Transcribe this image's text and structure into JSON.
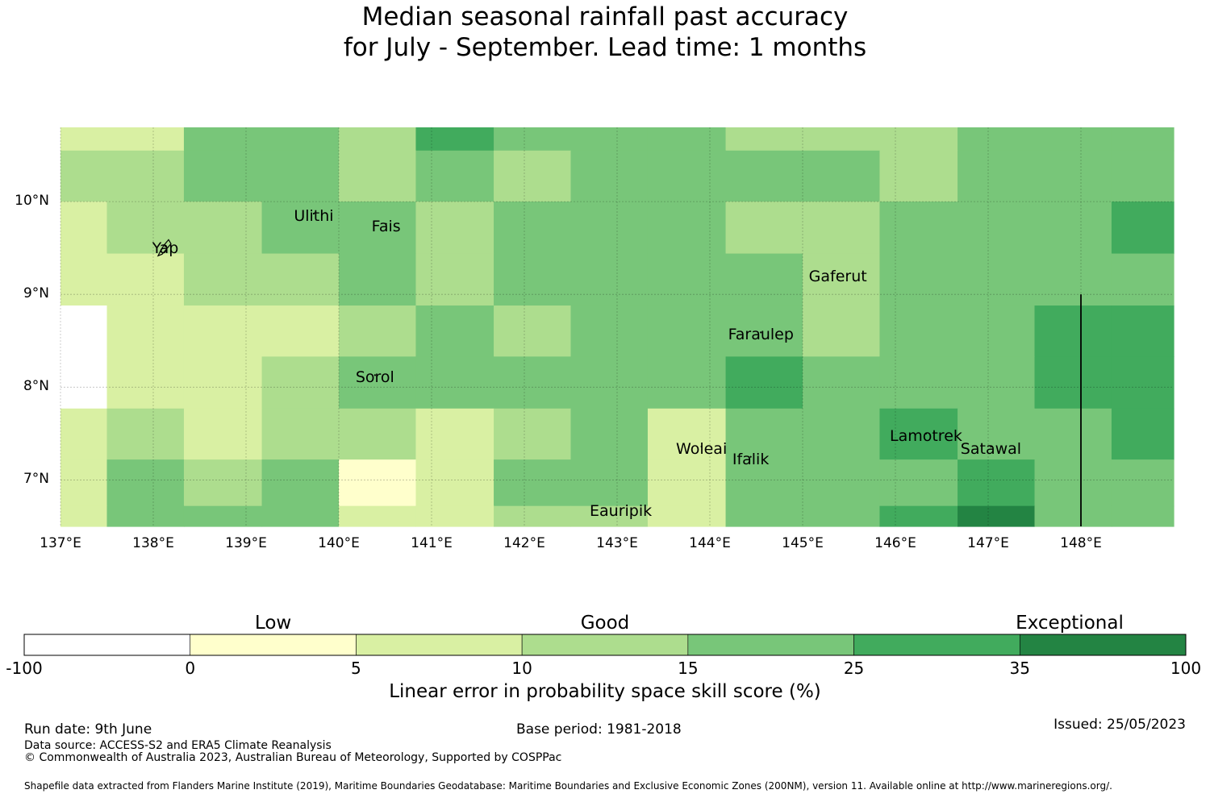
{
  "title": {
    "line1": "Median seasonal rainfall past accuracy",
    "line2": "for July - September. Lead time: 1 months"
  },
  "colors": {
    "c0": "#ffffff",
    "c1": "#ffffcc",
    "c2": "#d9f0a3",
    "c3": "#addd8e",
    "c4": "#78c679",
    "c5": "#41ab5d",
    "c6": "#238443"
  },
  "map": {
    "lon_range": [
      137,
      149
    ],
    "lat_range": [
      6.5,
      10.8
    ],
    "x_ticks": [
      {
        "lon": 137,
        "label": "137°E"
      },
      {
        "lon": 138,
        "label": "138°E"
      },
      {
        "lon": 139,
        "label": "139°E"
      },
      {
        "lon": 140,
        "label": "140°E"
      },
      {
        "lon": 141,
        "label": "141°E"
      },
      {
        "lon": 142,
        "label": "142°E"
      },
      {
        "lon": 143,
        "label": "143°E"
      },
      {
        "lon": 144,
        "label": "144°E"
      },
      {
        "lon": 145,
        "label": "145°E"
      },
      {
        "lon": 146,
        "label": "146°E"
      },
      {
        "lon": 147,
        "label": "147°E"
      },
      {
        "lon": 148,
        "label": "148°E"
      }
    ],
    "y_ticks": [
      {
        "lat": 10,
        "label": "10°N"
      },
      {
        "lat": 9,
        "label": "9°N"
      },
      {
        "lat": 8,
        "label": "8°N"
      },
      {
        "lat": 7,
        "label": "7°N"
      }
    ],
    "col_edges": [
      137,
      137.5,
      138.33,
      139.17,
      140,
      140.83,
      141.67,
      142.5,
      143.33,
      144.17,
      145,
      145.83,
      146.67,
      147.5,
      148.33,
      149
    ],
    "row_edges": [
      10.8,
      10.55,
      10,
      9.44,
      8.88,
      8.33,
      7.77,
      7.22,
      6.72,
      6.5
    ],
    "grid": [
      [
        2,
        2,
        4,
        4,
        3,
        5,
        4,
        4,
        4,
        3,
        3,
        3,
        4,
        4,
        4
      ],
      [
        3,
        3,
        4,
        4,
        3,
        4,
        3,
        4,
        4,
        4,
        4,
        3,
        4,
        4,
        4
      ],
      [
        2,
        3,
        3,
        4,
        4,
        3,
        4,
        4,
        4,
        3,
        3,
        4,
        4,
        4,
        5
      ],
      [
        2,
        2,
        3,
        3,
        4,
        3,
        4,
        4,
        4,
        4,
        3,
        4,
        4,
        4,
        4
      ],
      [
        0,
        2,
        2,
        2,
        3,
        4,
        3,
        4,
        4,
        4,
        3,
        4,
        4,
        5,
        5
      ],
      [
        0,
        2,
        2,
        3,
        4,
        4,
        4,
        4,
        4,
        5,
        4,
        4,
        4,
        5,
        5
      ],
      [
        2,
        3,
        2,
        3,
        3,
        2,
        3,
        4,
        2,
        4,
        4,
        5,
        4,
        4,
        5
      ],
      [
        2,
        4,
        3,
        4,
        1,
        2,
        4,
        4,
        2,
        4,
        4,
        4,
        5,
        4,
        4
      ],
      [
        2,
        4,
        4,
        4,
        2,
        2,
        3,
        3,
        2,
        4,
        4,
        5,
        6,
        4,
        4
      ]
    ],
    "boundary_line": {
      "lon": 148,
      "lat_from": 6.5,
      "lat_to": 9.0
    },
    "places": [
      {
        "name": "Ulithi",
        "lon": 139.73,
        "lat": 9.87
      },
      {
        "name": "Fais",
        "lon": 140.51,
        "lat": 9.76
      },
      {
        "name": "Yap",
        "lon": 138.13,
        "lat": 9.52
      },
      {
        "name": "Gaferut",
        "lon": 145.38,
        "lat": 9.22
      },
      {
        "name": "Faraulep",
        "lon": 144.55,
        "lat": 8.59
      },
      {
        "name": "Sorol",
        "lon": 140.39,
        "lat": 8.13
      },
      {
        "name": "Lamotrek",
        "lon": 146.33,
        "lat": 7.5
      },
      {
        "name": "Satawal",
        "lon": 147.03,
        "lat": 7.36
      },
      {
        "name": "Woleai",
        "lon": 143.91,
        "lat": 7.36
      },
      {
        "name": "Ifalik",
        "lon": 144.44,
        "lat": 7.25
      },
      {
        "name": "Eauripik",
        "lon": 143.04,
        "lat": 6.69
      }
    ]
  },
  "colorbar": {
    "ticks": [
      "-100",
      "0",
      "5",
      "10",
      "15",
      "25",
      "35",
      "100"
    ],
    "categories": [
      {
        "label": "Low",
        "position": 1.5
      },
      {
        "label": "Good",
        "position": 3.5
      },
      {
        "label": "Exceptional",
        "position": 6.3
      }
    ],
    "title": "Linear error in probability space skill score (%)"
  },
  "footer": {
    "run_date": "Run date: 9th June",
    "base_period": "Base period: 1981-2018",
    "issued": "Issued: 25/05/2023",
    "data_source": "Data source: ACCESS-S2 and ERA5 Climate Reanalysis",
    "copyright": "© Commonwealth of Australia 2023, Australian Bureau of Meteorology, Supported by COSPPac",
    "shapefile": "Shapefile data extracted from Flanders Marine Institute (2019), Maritime Boundaries Geodatabase: Maritime Boundaries and Exclusive Economic Zones (200NM), version 11. Available online at http://www.marineregions.org/."
  }
}
